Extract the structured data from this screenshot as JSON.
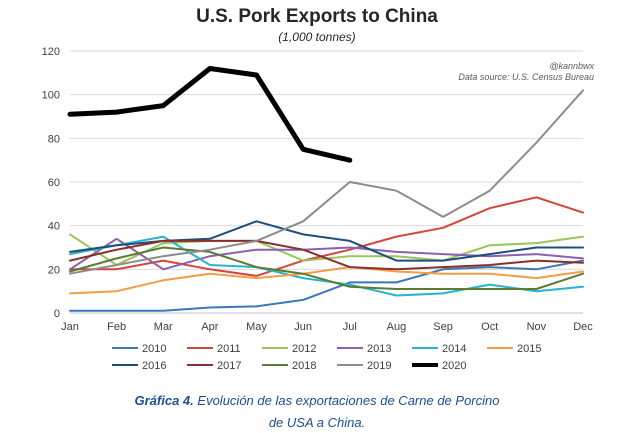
{
  "chart_data": {
    "type": "line",
    "title": "U.S. Pork Exports to China",
    "subtitle": "(1,000 tonnes)",
    "credit": "@kannbwx",
    "source": "Data source: U.S. Census Bureau",
    "xlabel": "",
    "ylabel": "",
    "ylim": [
      0,
      120
    ],
    "yticks": [
      0,
      20,
      40,
      60,
      80,
      100,
      120
    ],
    "grid": true,
    "legend_position": "bottom",
    "categories": [
      "Jan",
      "Feb",
      "Mar",
      "Apr",
      "May",
      "Jun",
      "Jul",
      "Aug",
      "Sep",
      "Oct",
      "Nov",
      "Dec"
    ],
    "series": [
      {
        "name": "2010",
        "color": "#3a78b8",
        "width": 2,
        "values": [
          1,
          1,
          1,
          2.5,
          3,
          6,
          14,
          14,
          20,
          21,
          20,
          24
        ]
      },
      {
        "name": "2011",
        "color": "#d4453d",
        "width": 2,
        "values": [
          20,
          20,
          24,
          20,
          17,
          24,
          29,
          35,
          39,
          48,
          53,
          46
        ]
      },
      {
        "name": "2012",
        "color": "#9bc45a",
        "width": 2,
        "values": [
          36,
          22,
          32,
          33,
          33,
          24,
          26,
          26,
          24,
          31,
          32,
          35
        ]
      },
      {
        "name": "2013",
        "color": "#8b5fb3",
        "width": 2,
        "values": [
          20,
          34,
          20,
          26,
          29,
          29,
          30,
          28,
          27,
          26,
          27,
          25
        ]
      },
      {
        "name": "2014",
        "color": "#27b3cc",
        "width": 2,
        "values": [
          27,
          31,
          35,
          22,
          21,
          16,
          13,
          8,
          9,
          13,
          10,
          12
        ]
      },
      {
        "name": "2015",
        "color": "#f39c47",
        "width": 2,
        "values": [
          9,
          10,
          15,
          18,
          16,
          18,
          21,
          19,
          18,
          18,
          16,
          19
        ]
      },
      {
        "name": "2016",
        "color": "#1f4e79",
        "width": 2,
        "values": [
          28,
          31,
          33,
          34,
          42,
          36,
          33,
          24,
          24,
          27,
          30,
          30
        ]
      },
      {
        "name": "2017",
        "color": "#8b2f2b",
        "width": 2,
        "values": [
          24,
          29,
          33,
          33,
          33,
          29,
          21,
          20,
          21,
          22,
          24,
          23
        ]
      },
      {
        "name": "2018",
        "color": "#5f7a32",
        "width": 2,
        "values": [
          19,
          25,
          30,
          28,
          21,
          18,
          12,
          11,
          11,
          11,
          11,
          18
        ]
      },
      {
        "name": "2019",
        "color": "#8c8c8c",
        "width": 2,
        "values": [
          18,
          22,
          26,
          29,
          33,
          42,
          60,
          56,
          44,
          56,
          78,
          102
        ]
      },
      {
        "name": "2020",
        "color": "#000000",
        "width": 5,
        "values": [
          91,
          92,
          95,
          112,
          109,
          75,
          70,
          null,
          null,
          null,
          null,
          null
        ]
      }
    ]
  },
  "caption": {
    "label": "Gráfica 4.",
    "line1": "Evolución de las exportaciones de Carne de Porcino",
    "line2": "de USA a China."
  }
}
